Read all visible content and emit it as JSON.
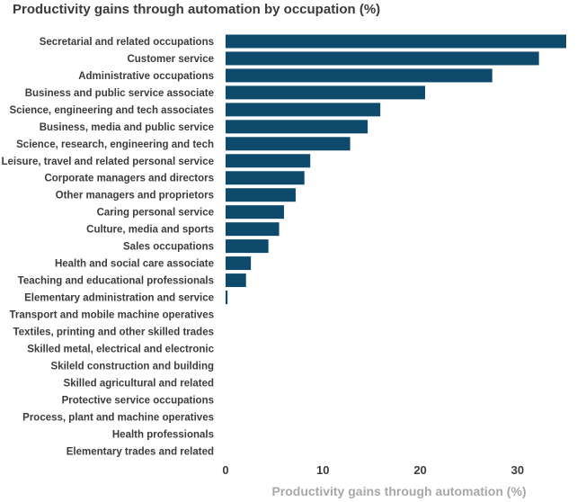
{
  "chart_data": {
    "type": "bar",
    "orientation": "horizontal",
    "title": "Productivity gains through automation by occupation (%)",
    "xlabel": "Productivity gains through automation (%)",
    "ylabel": "",
    "xlim": [
      0,
      35
    ],
    "xticks": [
      0,
      10,
      20,
      30
    ],
    "grid": false,
    "bar_color": "#0e4a6b",
    "categories": [
      "Secretarial and related occupations",
      "Customer service",
      "Administrative occupations",
      "Business and public service associate",
      "Science, engineering and tech associates",
      "Business, media and public service",
      "Science, research, engineering and tech",
      "Leisure, travel and related personal service",
      "Corporate managers and directors",
      "Other managers and proprietors",
      "Caring personal service",
      "Culture, media and sports",
      "Sales occupations",
      "Health and social care associate",
      "Teaching and educational professionals",
      "Elementary administration and service",
      "Transport and mobile machine operatives",
      "Textiles, printing and other skilled trades",
      "Skilled metal, electrical and electronic",
      "Skileld construction and building",
      "Skilled agricultural and related",
      "Protective service occupations",
      "Process, plant and machine operatives",
      "Health professionals",
      "Elementary trades and related"
    ],
    "values": [
      35.0,
      32.2,
      27.4,
      20.5,
      15.9,
      14.6,
      12.8,
      8.7,
      8.1,
      7.2,
      6.0,
      5.5,
      4.4,
      2.6,
      2.1,
      0.2,
      0,
      0,
      0,
      0,
      0,
      0,
      0,
      0,
      0
    ]
  }
}
